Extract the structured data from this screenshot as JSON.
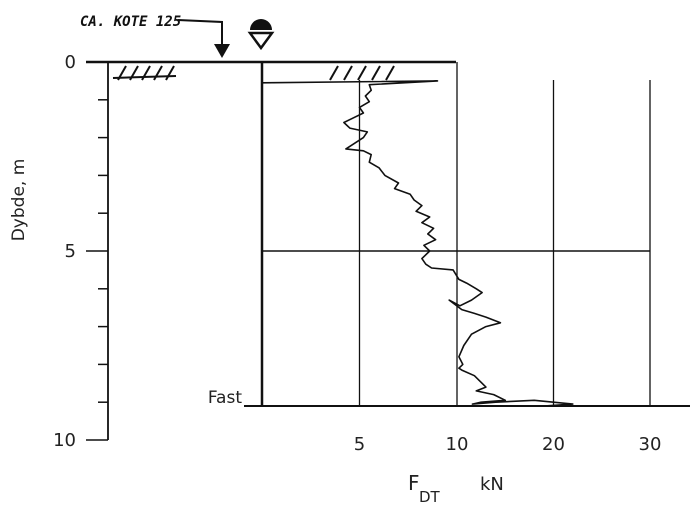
{
  "chart_data": {
    "type": "line",
    "title": "",
    "annotation": "CA. KOTE 125",
    "ylabel": "Dybde, m",
    "xlabel_main": "F",
    "xlabel_sub": "DT",
    "xlabel_unit": "kN",
    "y_ticks": [
      {
        "value": 0,
        "label": "0"
      },
      {
        "value": 1,
        "label": ""
      },
      {
        "value": 2,
        "label": ""
      },
      {
        "value": 3,
        "label": ""
      },
      {
        "value": 4,
        "label": ""
      },
      {
        "value": 5,
        "label": "5"
      },
      {
        "value": 6,
        "label": ""
      },
      {
        "value": 7,
        "label": ""
      },
      {
        "value": 8,
        "label": ""
      },
      {
        "value": 9,
        "label": ""
      },
      {
        "value": 10,
        "label": "10"
      }
    ],
    "x_ticks": [
      {
        "value": 5,
        "label": "5"
      },
      {
        "value": 10,
        "label": "10"
      },
      {
        "value": 20,
        "label": "20"
      },
      {
        "value": 30,
        "label": "30"
      }
    ],
    "ylim": [
      0,
      10
    ],
    "x_scale": "piecewise: 0-10 linear, 10-30 compressed",
    "fast_label": "Fast",
    "fast_depth": 9.1,
    "hline_depth": 5.0,
    "series": [
      {
        "name": "",
        "x": [
          0.0,
          9.0,
          5.5,
          5.6,
          5.3,
          5.5,
          5.0,
          5.2,
          4.6,
          4.2,
          4.5,
          5.4,
          5.2,
          4.3,
          5.2,
          5.6,
          5.5,
          6.0,
          6.3,
          7.0,
          6.8,
          7.6,
          7.8,
          8.2,
          7.9,
          8.6,
          8.2,
          8.8,
          8.5,
          8.9,
          8.3,
          8.6,
          8.2,
          8.4,
          8.7,
          9.8,
          10.2,
          11.0,
          12.0,
          12.6,
          11.5,
          10.3,
          9.6,
          10.5,
          11.8,
          13.0,
          14.5,
          13.0,
          11.5,
          10.7,
          10.2,
          10.6,
          10.2,
          10.5,
          11.8,
          12.4,
          13.0,
          12.0,
          13.8,
          15.0,
          12.5,
          11.6,
          14.0,
          18.0,
          22.0,
          19.0,
          30.0
        ],
        "y": [
          0.55,
          0.5,
          0.6,
          0.75,
          0.9,
          1.05,
          1.2,
          1.35,
          1.5,
          1.6,
          1.75,
          1.85,
          2.0,
          2.3,
          2.35,
          2.45,
          2.65,
          2.8,
          3.0,
          3.2,
          3.35,
          3.5,
          3.65,
          3.8,
          3.95,
          4.1,
          4.25,
          4.4,
          4.55,
          4.7,
          4.85,
          5.0,
          5.2,
          5.35,
          5.45,
          5.5,
          5.75,
          5.85,
          6.0,
          6.1,
          6.3,
          6.45,
          6.3,
          6.55,
          6.65,
          6.75,
          6.9,
          7.0,
          7.2,
          7.5,
          7.8,
          8.0,
          8.1,
          8.15,
          8.3,
          8.45,
          8.6,
          8.7,
          8.8,
          8.95,
          9.0,
          9.05,
          9.0,
          8.95,
          9.05,
          9.1,
          9.1
        ]
      }
    ]
  }
}
